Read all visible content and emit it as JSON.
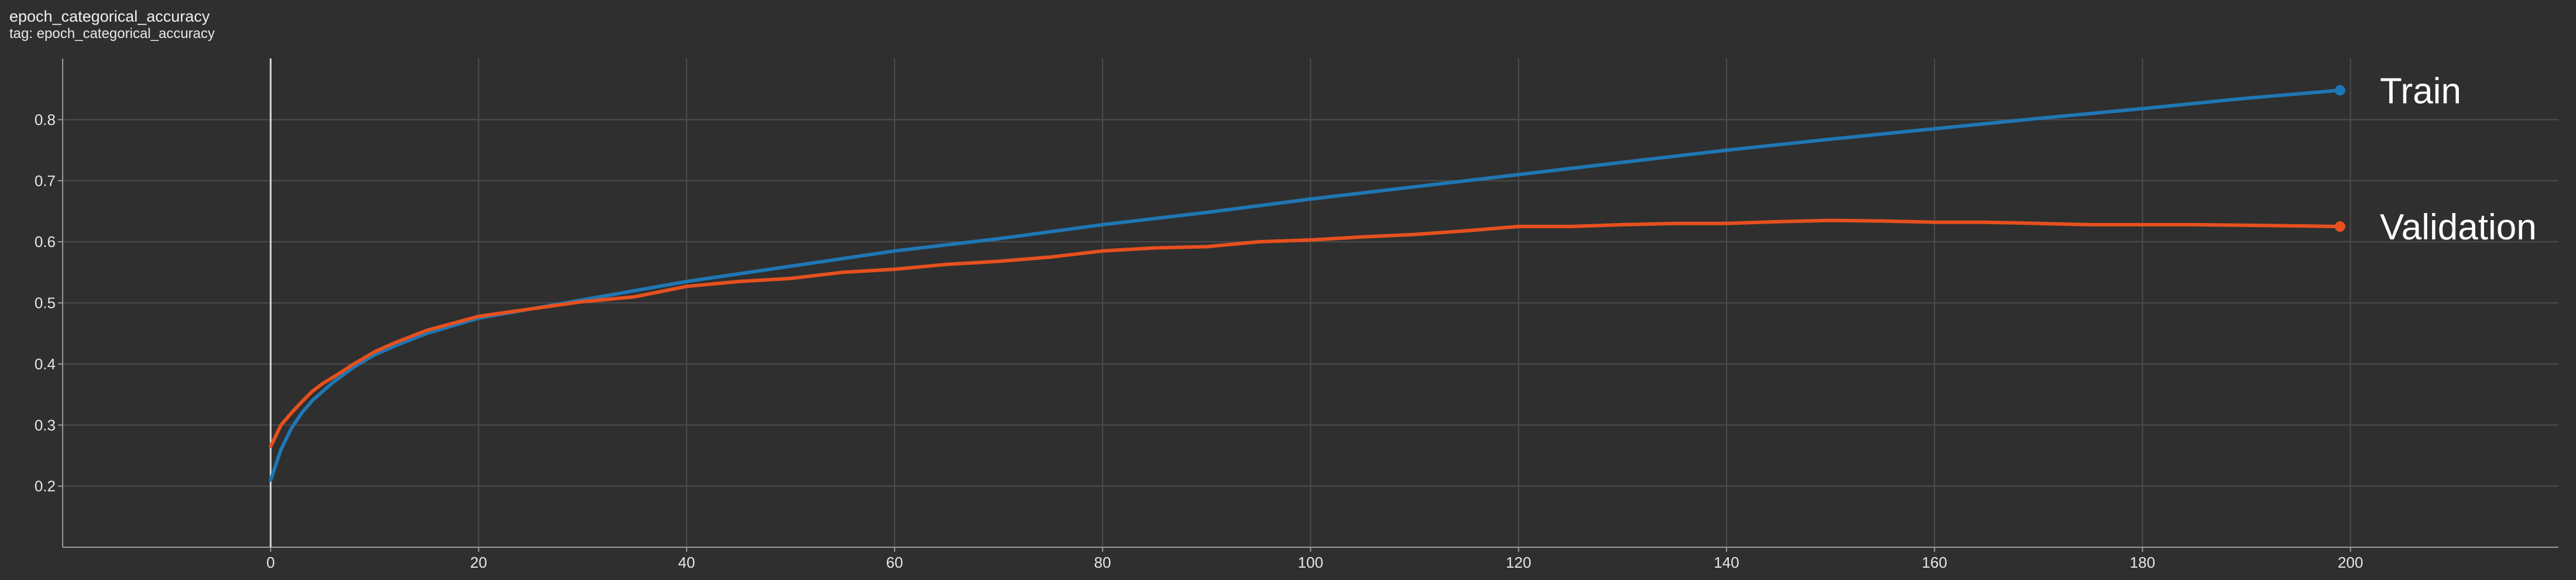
{
  "header": {
    "title": "epoch_categorical_accuracy",
    "tag": "tag: epoch_categorical_accuracy"
  },
  "chart_data": {
    "type": "line",
    "title": "epoch_categorical_accuracy",
    "xlabel": "",
    "ylabel": "",
    "xlim": [
      -20,
      220
    ],
    "ylim": [
      0.1,
      0.9
    ],
    "x_ticks": [
      0,
      20,
      40,
      60,
      80,
      100,
      120,
      140,
      160,
      180,
      200
    ],
    "y_ticks": [
      0.2,
      0.3,
      0.4,
      0.5,
      0.6,
      0.7,
      0.8
    ],
    "grid": true,
    "legend": "right, at line ends",
    "series": [
      {
        "name": "Train",
        "color": "#1f77b4",
        "x": [
          0,
          1,
          2,
          3,
          4,
          5,
          6,
          8,
          10,
          12,
          15,
          20,
          25,
          30,
          40,
          50,
          60,
          70,
          80,
          90,
          100,
          110,
          120,
          130,
          140,
          150,
          160,
          170,
          180,
          190,
          199
        ],
        "y": [
          0.21,
          0.26,
          0.295,
          0.32,
          0.34,
          0.355,
          0.37,
          0.395,
          0.415,
          0.43,
          0.45,
          0.475,
          0.49,
          0.505,
          0.535,
          0.56,
          0.585,
          0.605,
          0.628,
          0.648,
          0.67,
          0.69,
          0.71,
          0.73,
          0.75,
          0.768,
          0.785,
          0.802,
          0.818,
          0.835,
          0.848
        ]
      },
      {
        "name": "Validation",
        "color": "#e6501e",
        "x": [
          0,
          1,
          2,
          3,
          4,
          5,
          6,
          8,
          10,
          12,
          15,
          20,
          25,
          30,
          35,
          40,
          45,
          50,
          55,
          60,
          65,
          70,
          75,
          80,
          85,
          90,
          95,
          100,
          105,
          110,
          115,
          120,
          125,
          130,
          135,
          140,
          145,
          150,
          155,
          160,
          165,
          170,
          175,
          180,
          185,
          190,
          195,
          199
        ],
        "y": [
          0.265,
          0.3,
          0.32,
          0.338,
          0.355,
          0.368,
          0.378,
          0.4,
          0.42,
          0.435,
          0.455,
          0.478,
          0.49,
          0.502,
          0.51,
          0.527,
          0.535,
          0.54,
          0.55,
          0.555,
          0.563,
          0.568,
          0.575,
          0.585,
          0.59,
          0.592,
          0.6,
          0.603,
          0.608,
          0.612,
          0.618,
          0.625,
          0.625,
          0.628,
          0.63,
          0.63,
          0.633,
          0.635,
          0.634,
          0.632,
          0.632,
          0.63,
          0.628,
          0.628,
          0.628,
          0.627,
          0.626,
          0.625
        ]
      }
    ]
  }
}
